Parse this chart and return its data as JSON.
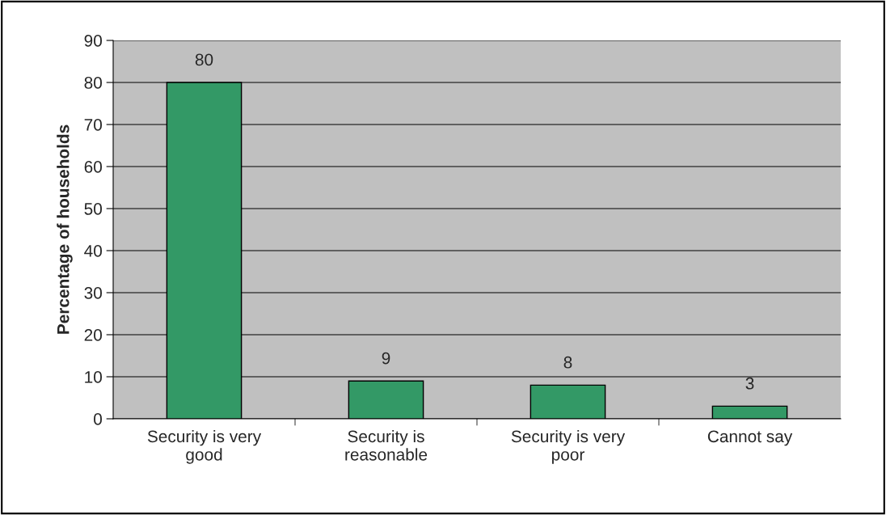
{
  "chart_data": {
    "type": "bar",
    "ylabel": "Percentage of households",
    "categories": [
      "Security is very\ngood",
      "Security is\nreasonable",
      "Security is very\npoor",
      "Cannot say"
    ],
    "values": [
      80,
      9,
      8,
      3
    ],
    "color": "#339966",
    "ylim": [
      0,
      90
    ],
    "yticks": [
      0,
      10,
      20,
      30,
      40,
      50,
      60,
      70,
      80,
      90
    ],
    "grid": "y",
    "legend": false,
    "data_labels": true
  }
}
